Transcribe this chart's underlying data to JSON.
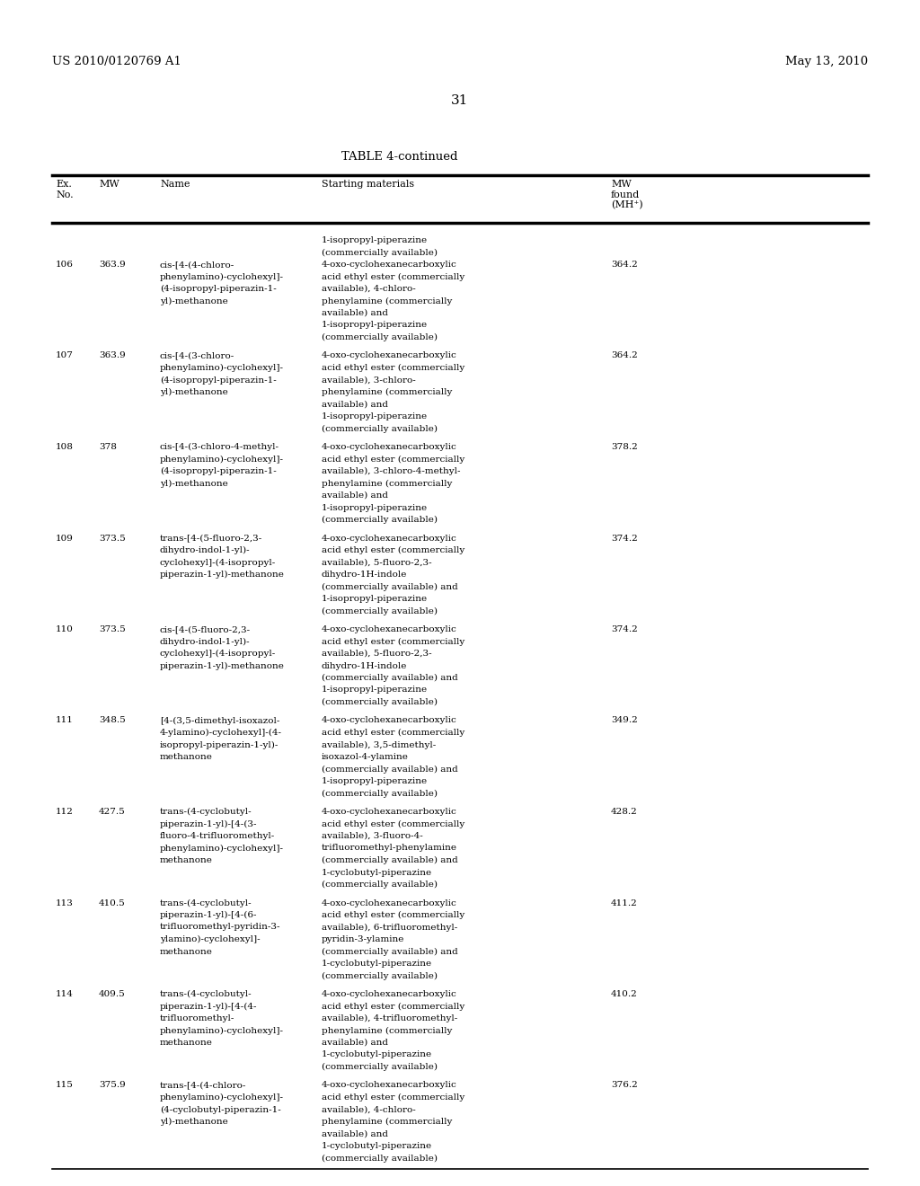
{
  "header_left": "US 2010/0120769 A1",
  "header_right": "May 13, 2010",
  "page_number": "31",
  "table_title": "TABLE 4-continued",
  "rows": [
    {
      "ex": "106",
      "mw": "363.9",
      "name": [
        "cis-[4-(4-chloro-",
        "phenylamino)-cyclohexyl]-",
        "(4-isopropyl-piperazin-1-",
        "yl)-methanone"
      ],
      "pre_start": [
        "1-isopropyl-piperazine",
        "(commercially available)"
      ],
      "start": [
        "4-oxo-cyclohexanecarboxylic",
        "acid ethyl ester (commercially",
        "available), 4-chloro-",
        "phenylamine (commercially",
        "available) and",
        "1-isopropyl-piperazine",
        "(commercially available)"
      ],
      "mwf": "364.2"
    },
    {
      "ex": "107",
      "mw": "363.9",
      "name": [
        "cis-[4-(3-chloro-",
        "phenylamino)-cyclohexyl]-",
        "(4-isopropyl-piperazin-1-",
        "yl)-methanone"
      ],
      "pre_start": [],
      "start": [
        "4-oxo-cyclohexanecarboxylic",
        "acid ethyl ester (commercially",
        "available), 3-chloro-",
        "phenylamine (commercially",
        "available) and",
        "1-isopropyl-piperazine",
        "(commercially available)"
      ],
      "mwf": "364.2"
    },
    {
      "ex": "108",
      "mw": "378",
      "name": [
        "cis-[4-(3-chloro-4-methyl-",
        "phenylamino)-cyclohexyl]-",
        "(4-isopropyl-piperazin-1-",
        "yl)-methanone"
      ],
      "pre_start": [],
      "start": [
        "4-oxo-cyclohexanecarboxylic",
        "acid ethyl ester (commercially",
        "available), 3-chloro-4-methyl-",
        "phenylamine (commercially",
        "available) and",
        "1-isopropyl-piperazine",
        "(commercially available)"
      ],
      "mwf": "378.2"
    },
    {
      "ex": "109",
      "mw": "373.5",
      "name": [
        "trans-[4-(5-fluoro-2,3-",
        "dihydro-indol-1-yl)-",
        "cyclohexyl]-(4-isopropyl-",
        "piperazin-1-yl)-methanone"
      ],
      "pre_start": [],
      "start": [
        "4-oxo-cyclohexanecarboxylic",
        "acid ethyl ester (commercially",
        "available), 5-fluoro-2,3-",
        "dihydro-1H-indole",
        "(commercially available) and",
        "1-isopropyl-piperazine",
        "(commercially available)"
      ],
      "mwf": "374.2"
    },
    {
      "ex": "110",
      "mw": "373.5",
      "name": [
        "cis-[4-(5-fluoro-2,3-",
        "dihydro-indol-1-yl)-",
        "cyclohexyl]-(4-isopropyl-",
        "piperazin-1-yl)-methanone"
      ],
      "pre_start": [],
      "start": [
        "4-oxo-cyclohexanecarboxylic",
        "acid ethyl ester (commercially",
        "available), 5-fluoro-2,3-",
        "dihydro-1H-indole",
        "(commercially available) and",
        "1-isopropyl-piperazine",
        "(commercially available)"
      ],
      "mwf": "374.2"
    },
    {
      "ex": "111",
      "mw": "348.5",
      "name": [
        "[4-(3,5-dimethyl-isoxazol-",
        "4-ylamino)-cyclohexyl]-(4-",
        "isopropyl-piperazin-1-yl)-",
        "methanone"
      ],
      "pre_start": [],
      "start": [
        "4-oxo-cyclohexanecarboxylic",
        "acid ethyl ester (commercially",
        "available), 3,5-dimethyl-",
        "isoxazol-4-ylamine",
        "(commercially available) and",
        "1-isopropyl-piperazine",
        "(commercially available)"
      ],
      "mwf": "349.2"
    },
    {
      "ex": "112",
      "mw": "427.5",
      "name": [
        "trans-(4-cyclobutyl-",
        "piperazin-1-yl)-[4-(3-",
        "fluoro-4-trifluoromethyl-",
        "phenylamino)-cyclohexyl]-",
        "methanone"
      ],
      "pre_start": [],
      "start": [
        "4-oxo-cyclohexanecarboxylic",
        "acid ethyl ester (commercially",
        "available), 3-fluoro-4-",
        "trifluoromethyl-phenylamine",
        "(commercially available) and",
        "1-cyclobutyl-piperazine",
        "(commercially available)"
      ],
      "mwf": "428.2"
    },
    {
      "ex": "113",
      "mw": "410.5",
      "name": [
        "trans-(4-cyclobutyl-",
        "piperazin-1-yl)-[4-(6-",
        "trifluoromethyl-pyridin-3-",
        "ylamino)-cyclohexyl]-",
        "methanone"
      ],
      "pre_start": [],
      "start": [
        "4-oxo-cyclohexanecarboxylic",
        "acid ethyl ester (commercially",
        "available), 6-trifluoromethyl-",
        "pyridin-3-ylamine",
        "(commercially available) and",
        "1-cyclobutyl-piperazine",
        "(commercially available)"
      ],
      "mwf": "411.2"
    },
    {
      "ex": "114",
      "mw": "409.5",
      "name": [
        "trans-(4-cyclobutyl-",
        "piperazin-1-yl)-[4-(4-",
        "trifluoromethyl-",
        "phenylamino)-cyclohexyl]-",
        "methanone"
      ],
      "pre_start": [],
      "start": [
        "4-oxo-cyclohexanecarboxylic",
        "acid ethyl ester (commercially",
        "available), 4-trifluoromethyl-",
        "phenylamine (commercially",
        "available) and",
        "1-cyclobutyl-piperazine",
        "(commercially available)"
      ],
      "mwf": "410.2"
    },
    {
      "ex": "115",
      "mw": "375.9",
      "name": [
        "trans-[4-(4-chloro-",
        "phenylamino)-cyclohexyl]-",
        "(4-cyclobutyl-piperazin-1-",
        "yl)-methanone"
      ],
      "pre_start": [],
      "start": [
        "4-oxo-cyclohexanecarboxylic",
        "acid ethyl ester (commercially",
        "available), 4-chloro-",
        "phenylamine (commercially",
        "available) and",
        "1-cyclobutyl-piperazine",
        "(commercially available)"
      ],
      "mwf": "376.2"
    }
  ]
}
